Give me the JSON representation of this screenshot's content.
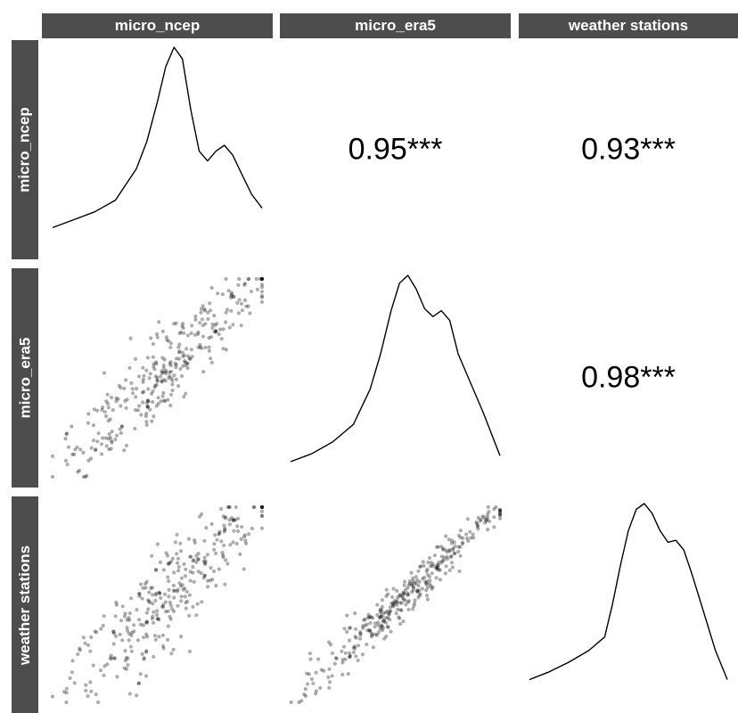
{
  "chart_data": {
    "type": "scatter-matrix",
    "variables": [
      "micro_ncep",
      "micro_era5",
      "weather stations"
    ],
    "correlations": [
      {
        "row": "micro_ncep",
        "col": "micro_era5",
        "label": "0.95***",
        "value": 0.95,
        "significance": "***"
      },
      {
        "row": "micro_ncep",
        "col": "weather stations",
        "label": "0.93***",
        "value": 0.93,
        "significance": "***"
      },
      {
        "row": "micro_era5",
        "col": "weather stations",
        "label": "0.98***",
        "value": 0.98,
        "significance": "***"
      }
    ],
    "densities": {
      "micro_ncep": [
        [
          0.0,
          0.08
        ],
        [
          0.1,
          0.12
        ],
        [
          0.2,
          0.16
        ],
        [
          0.3,
          0.22
        ],
        [
          0.4,
          0.38
        ],
        [
          0.45,
          0.52
        ],
        [
          0.5,
          0.72
        ],
        [
          0.54,
          0.9
        ],
        [
          0.58,
          1.0
        ],
        [
          0.62,
          0.94
        ],
        [
          0.66,
          0.68
        ],
        [
          0.7,
          0.47
        ],
        [
          0.74,
          0.42
        ],
        [
          0.78,
          0.47
        ],
        [
          0.82,
          0.5
        ],
        [
          0.86,
          0.45
        ],
        [
          0.9,
          0.36
        ],
        [
          0.95,
          0.25
        ],
        [
          1.0,
          0.18
        ]
      ],
      "micro_era5": [
        [
          0.0,
          0.05
        ],
        [
          0.1,
          0.09
        ],
        [
          0.2,
          0.15
        ],
        [
          0.3,
          0.24
        ],
        [
          0.38,
          0.42
        ],
        [
          0.43,
          0.6
        ],
        [
          0.48,
          0.82
        ],
        [
          0.52,
          0.96
        ],
        [
          0.56,
          1.0
        ],
        [
          0.6,
          0.93
        ],
        [
          0.64,
          0.83
        ],
        [
          0.68,
          0.79
        ],
        [
          0.72,
          0.82
        ],
        [
          0.76,
          0.77
        ],
        [
          0.8,
          0.6
        ],
        [
          0.86,
          0.45
        ],
        [
          0.92,
          0.3
        ],
        [
          1.0,
          0.08
        ]
      ],
      "weather stations": [
        [
          0.0,
          0.09
        ],
        [
          0.1,
          0.13
        ],
        [
          0.2,
          0.18
        ],
        [
          0.3,
          0.24
        ],
        [
          0.38,
          0.31
        ],
        [
          0.42,
          0.48
        ],
        [
          0.46,
          0.68
        ],
        [
          0.5,
          0.86
        ],
        [
          0.54,
          0.97
        ],
        [
          0.58,
          1.0
        ],
        [
          0.62,
          0.95
        ],
        [
          0.66,
          0.86
        ],
        [
          0.7,
          0.8
        ],
        [
          0.74,
          0.81
        ],
        [
          0.78,
          0.76
        ],
        [
          0.82,
          0.64
        ],
        [
          0.88,
          0.44
        ],
        [
          0.94,
          0.24
        ],
        [
          1.0,
          0.09
        ]
      ]
    },
    "scatter": [
      {
        "row": "micro_era5",
        "col": "micro_ncep",
        "n": 320,
        "spread": 0.075,
        "seed": 11
      },
      {
        "row": "weather stations",
        "col": "micro_ncep",
        "n": 320,
        "spread": 0.085,
        "seed": 23
      },
      {
        "row": "weather stations",
        "col": "micro_era5",
        "n": 340,
        "spread": 0.04,
        "seed": 37
      }
    ],
    "grid": false,
    "point_color": "#000000",
    "line_color": "#000000",
    "strip_color": "#4d4d4d"
  }
}
